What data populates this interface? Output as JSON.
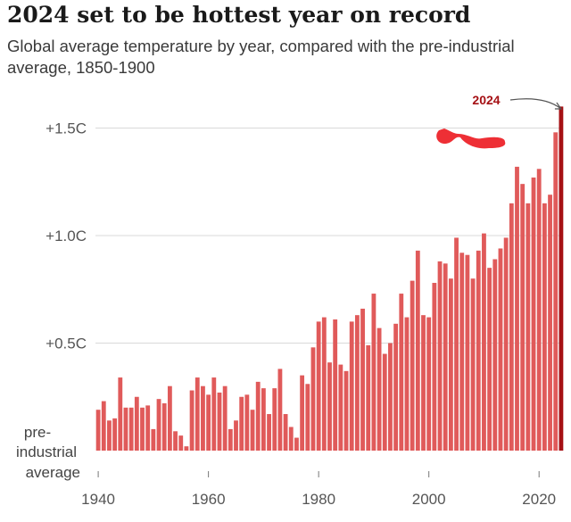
{
  "title": "2024 set to be hottest year on record",
  "subtitle": "Global average temperature by year, compared with the pre-industrial average, 1850-1900",
  "colors": {
    "bar": "#e05a5a",
    "highlight_bar": "#a51014",
    "grid": "#d9d9d9",
    "scribble": "#ee2f35"
  },
  "chart_data": {
    "type": "bar",
    "title": "2024 set to be hottest year on record",
    "subtitle": "Global average temperature by year, compared with the pre-industrial average, 1850-1900",
    "x_start": 1940,
    "x_end": 2024,
    "ylim": [
      0,
      1.6
    ],
    "grid": true,
    "y_ticks": [
      {
        "value": 0.5,
        "label": "+0.5C"
      },
      {
        "value": 1.0,
        "label": "+1.0C"
      },
      {
        "value": 1.5,
        "label": "+1.5C"
      }
    ],
    "baseline_label": [
      "pre-",
      "industrial",
      "average"
    ],
    "x_ticks": [
      {
        "value": 1940,
        "label": "1940"
      },
      {
        "value": 1960,
        "label": "1960"
      },
      {
        "value": 1980,
        "label": "1980"
      },
      {
        "value": 2000,
        "label": "2000"
      },
      {
        "value": 2020,
        "label": "2020"
      }
    ],
    "highlight": {
      "year": 2024,
      "label": "2024"
    },
    "years": [
      1940,
      1941,
      1942,
      1943,
      1944,
      1945,
      1946,
      1947,
      1948,
      1949,
      1950,
      1951,
      1952,
      1953,
      1954,
      1955,
      1956,
      1957,
      1958,
      1959,
      1960,
      1961,
      1962,
      1963,
      1964,
      1965,
      1966,
      1967,
      1968,
      1969,
      1970,
      1971,
      1972,
      1973,
      1974,
      1975,
      1976,
      1977,
      1978,
      1979,
      1980,
      1981,
      1982,
      1983,
      1984,
      1985,
      1986,
      1987,
      1988,
      1989,
      1990,
      1991,
      1992,
      1993,
      1994,
      1995,
      1996,
      1997,
      1998,
      1999,
      2000,
      2001,
      2002,
      2003,
      2004,
      2005,
      2006,
      2007,
      2008,
      2009,
      2010,
      2011,
      2012,
      2013,
      2014,
      2015,
      2016,
      2017,
      2018,
      2019,
      2020,
      2021,
      2022,
      2023,
      2024
    ],
    "values": [
      0.19,
      0.23,
      0.14,
      0.15,
      0.34,
      0.2,
      0.2,
      0.25,
      0.2,
      0.21,
      0.1,
      0.24,
      0.22,
      0.3,
      0.09,
      0.07,
      0.02,
      0.28,
      0.34,
      0.3,
      0.26,
      0.34,
      0.27,
      0.3,
      0.1,
      0.14,
      0.25,
      0.26,
      0.19,
      0.32,
      0.29,
      0.17,
      0.29,
      0.38,
      0.17,
      0.11,
      0.06,
      0.35,
      0.31,
      0.48,
      0.6,
      0.62,
      0.41,
      0.61,
      0.4,
      0.37,
      0.6,
      0.63,
      0.66,
      0.49,
      0.73,
      0.57,
      0.45,
      0.5,
      0.59,
      0.73,
      0.62,
      0.79,
      0.93,
      0.63,
      0.62,
      0.78,
      0.88,
      0.87,
      0.8,
      0.99,
      0.92,
      0.91,
      0.8,
      0.93,
      1.01,
      0.85,
      0.89,
      0.94,
      0.99,
      1.15,
      1.32,
      1.24,
      1.15,
      1.27,
      1.31,
      1.15,
      1.19,
      1.48,
      1.6
    ]
  }
}
